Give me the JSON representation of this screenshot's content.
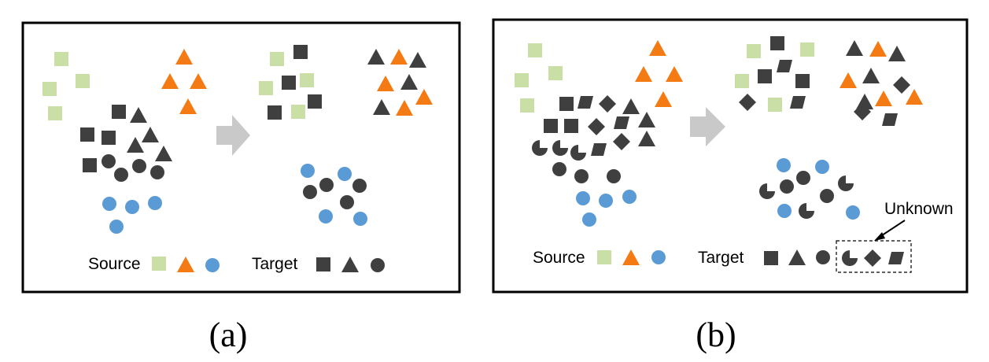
{
  "colors": {
    "source_square": "#c9dfa6",
    "source_triangle": "#f47a14",
    "source_circle": "#5b9bd5",
    "target": "#3f3f3f",
    "arrow": "#c9c9c9"
  },
  "panel_a": {
    "caption": "(a)",
    "legend": {
      "source_label": "Source",
      "target_label": "Target"
    }
  },
  "panel_b": {
    "caption": "(b)",
    "legend": {
      "source_label": "Source",
      "target_label": "Target"
    },
    "unknown_label": "Unknown"
  }
}
